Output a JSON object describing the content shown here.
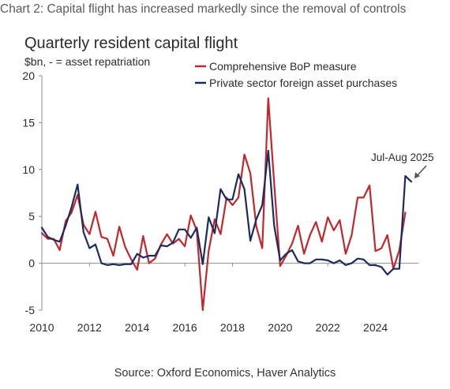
{
  "heading": "Chart 2: Capital flight has increased markedly since the removal of controls",
  "source": "Source: Oxford Economics, Haver Analytics",
  "chart_data": {
    "type": "line",
    "title": "Quarterly resident capital flight",
    "ylabel": "$bn, - = asset repatriation",
    "xlabel": "",
    "ylim": [
      -5,
      20
    ],
    "xlim": [
      2010,
      2026
    ],
    "y_ticks": [
      -5,
      0,
      5,
      10,
      15,
      20
    ],
    "x_ticks": [
      2010,
      2012,
      2014,
      2016,
      2018,
      2020,
      2022,
      2024
    ],
    "grid": false,
    "legend_position": "top-right",
    "annotation": {
      "text": "Jul-Aug 2025",
      "x": 2025.5,
      "y": 8.7
    },
    "series": [
      {
        "name": "Comprehensive BoP measure",
        "color": "#c0282d",
        "x": [
          2010.0,
          2010.25,
          2010.5,
          2010.75,
          2011.0,
          2011.25,
          2011.5,
          2011.75,
          2012.0,
          2012.25,
          2012.5,
          2012.75,
          2013.0,
          2013.25,
          2013.5,
          2013.75,
          2014.0,
          2014.25,
          2014.5,
          2014.75,
          2015.0,
          2015.25,
          2015.5,
          2015.75,
          2016.0,
          2016.25,
          2016.5,
          2016.75,
          2017.0,
          2017.25,
          2017.5,
          2017.75,
          2018.0,
          2018.25,
          2018.5,
          2018.75,
          2019.0,
          2019.25,
          2019.5,
          2019.75,
          2020.0,
          2020.25,
          2020.5,
          2020.75,
          2021.0,
          2021.25,
          2021.5,
          2021.75,
          2022.0,
          2022.25,
          2022.5,
          2022.75,
          2023.0,
          2023.25,
          2023.5,
          2023.75,
          2024.0,
          2024.25,
          2024.5,
          2024.75,
          2025.0,
          2025.25
        ],
        "values": [
          3.2,
          2.6,
          2.6,
          1.4,
          4.5,
          5.4,
          7.3,
          4.1,
          3.1,
          5.5,
          2.8,
          2.6,
          0.8,
          3.9,
          1.7,
          0.4,
          -0.7,
          2.9,
          0.0,
          0.5,
          2.0,
          3.1,
          2.1,
          2.6,
          1.8,
          5.1,
          3.5,
          -5.0,
          1.3,
          4.7,
          3.1,
          7.0,
          6.2,
          7.0,
          11.6,
          9.6,
          3.9,
          1.6,
          17.6,
          8.5,
          -0.3,
          0.8,
          2.1,
          4.0,
          1.0,
          3.0,
          4.4,
          2.3,
          4.9,
          3.5,
          4.6,
          1.0,
          3.0,
          7.0,
          7.0,
          8.3,
          1.3,
          1.6,
          3.0,
          -0.6,
          1.4,
          5.4
        ]
      },
      {
        "name": "Private sector foreign asset purchases",
        "color": "#1c2b5e",
        "x": [
          2010.0,
          2010.25,
          2010.5,
          2010.75,
          2011.0,
          2011.25,
          2011.5,
          2011.75,
          2012.0,
          2012.25,
          2012.5,
          2012.75,
          2013.0,
          2013.25,
          2013.5,
          2013.75,
          2014.0,
          2014.25,
          2014.5,
          2014.75,
          2015.0,
          2015.25,
          2015.5,
          2015.75,
          2016.0,
          2016.25,
          2016.5,
          2016.75,
          2017.0,
          2017.25,
          2017.5,
          2017.75,
          2018.0,
          2018.25,
          2018.5,
          2018.75,
          2019.0,
          2019.25,
          2019.5,
          2019.75,
          2020.0,
          2020.25,
          2020.5,
          2020.75,
          2021.0,
          2021.25,
          2021.5,
          2021.75,
          2022.0,
          2022.25,
          2022.5,
          2022.75,
          2023.0,
          2023.25,
          2023.5,
          2023.75,
          2024.0,
          2024.25,
          2024.5,
          2024.75,
          2025.0,
          2025.25,
          2025.5
        ],
        "values": [
          3.8,
          2.8,
          2.5,
          2.3,
          4.0,
          6.0,
          8.4,
          3.3,
          1.6,
          2.0,
          0.0,
          -0.2,
          -0.1,
          -0.2,
          -0.1,
          -0.1,
          1.0,
          0.6,
          0.8,
          0.8,
          1.9,
          1.8,
          2.2,
          3.6,
          3.6,
          2.7,
          3.8,
          -0.1,
          4.9,
          3.2,
          7.9,
          6.8,
          6.8,
          9.5,
          7.9,
          2.4,
          4.7,
          6.2,
          12.0,
          4.0,
          0.3,
          1.0,
          1.4,
          0.2,
          0.0,
          0.0,
          0.4,
          0.4,
          0.3,
          0.0,
          0.3,
          -0.2,
          0.0,
          0.5,
          0.4,
          -0.2,
          -0.2,
          -0.4,
          -1.2,
          -0.6,
          -0.6,
          9.3,
          8.7
        ]
      }
    ]
  }
}
